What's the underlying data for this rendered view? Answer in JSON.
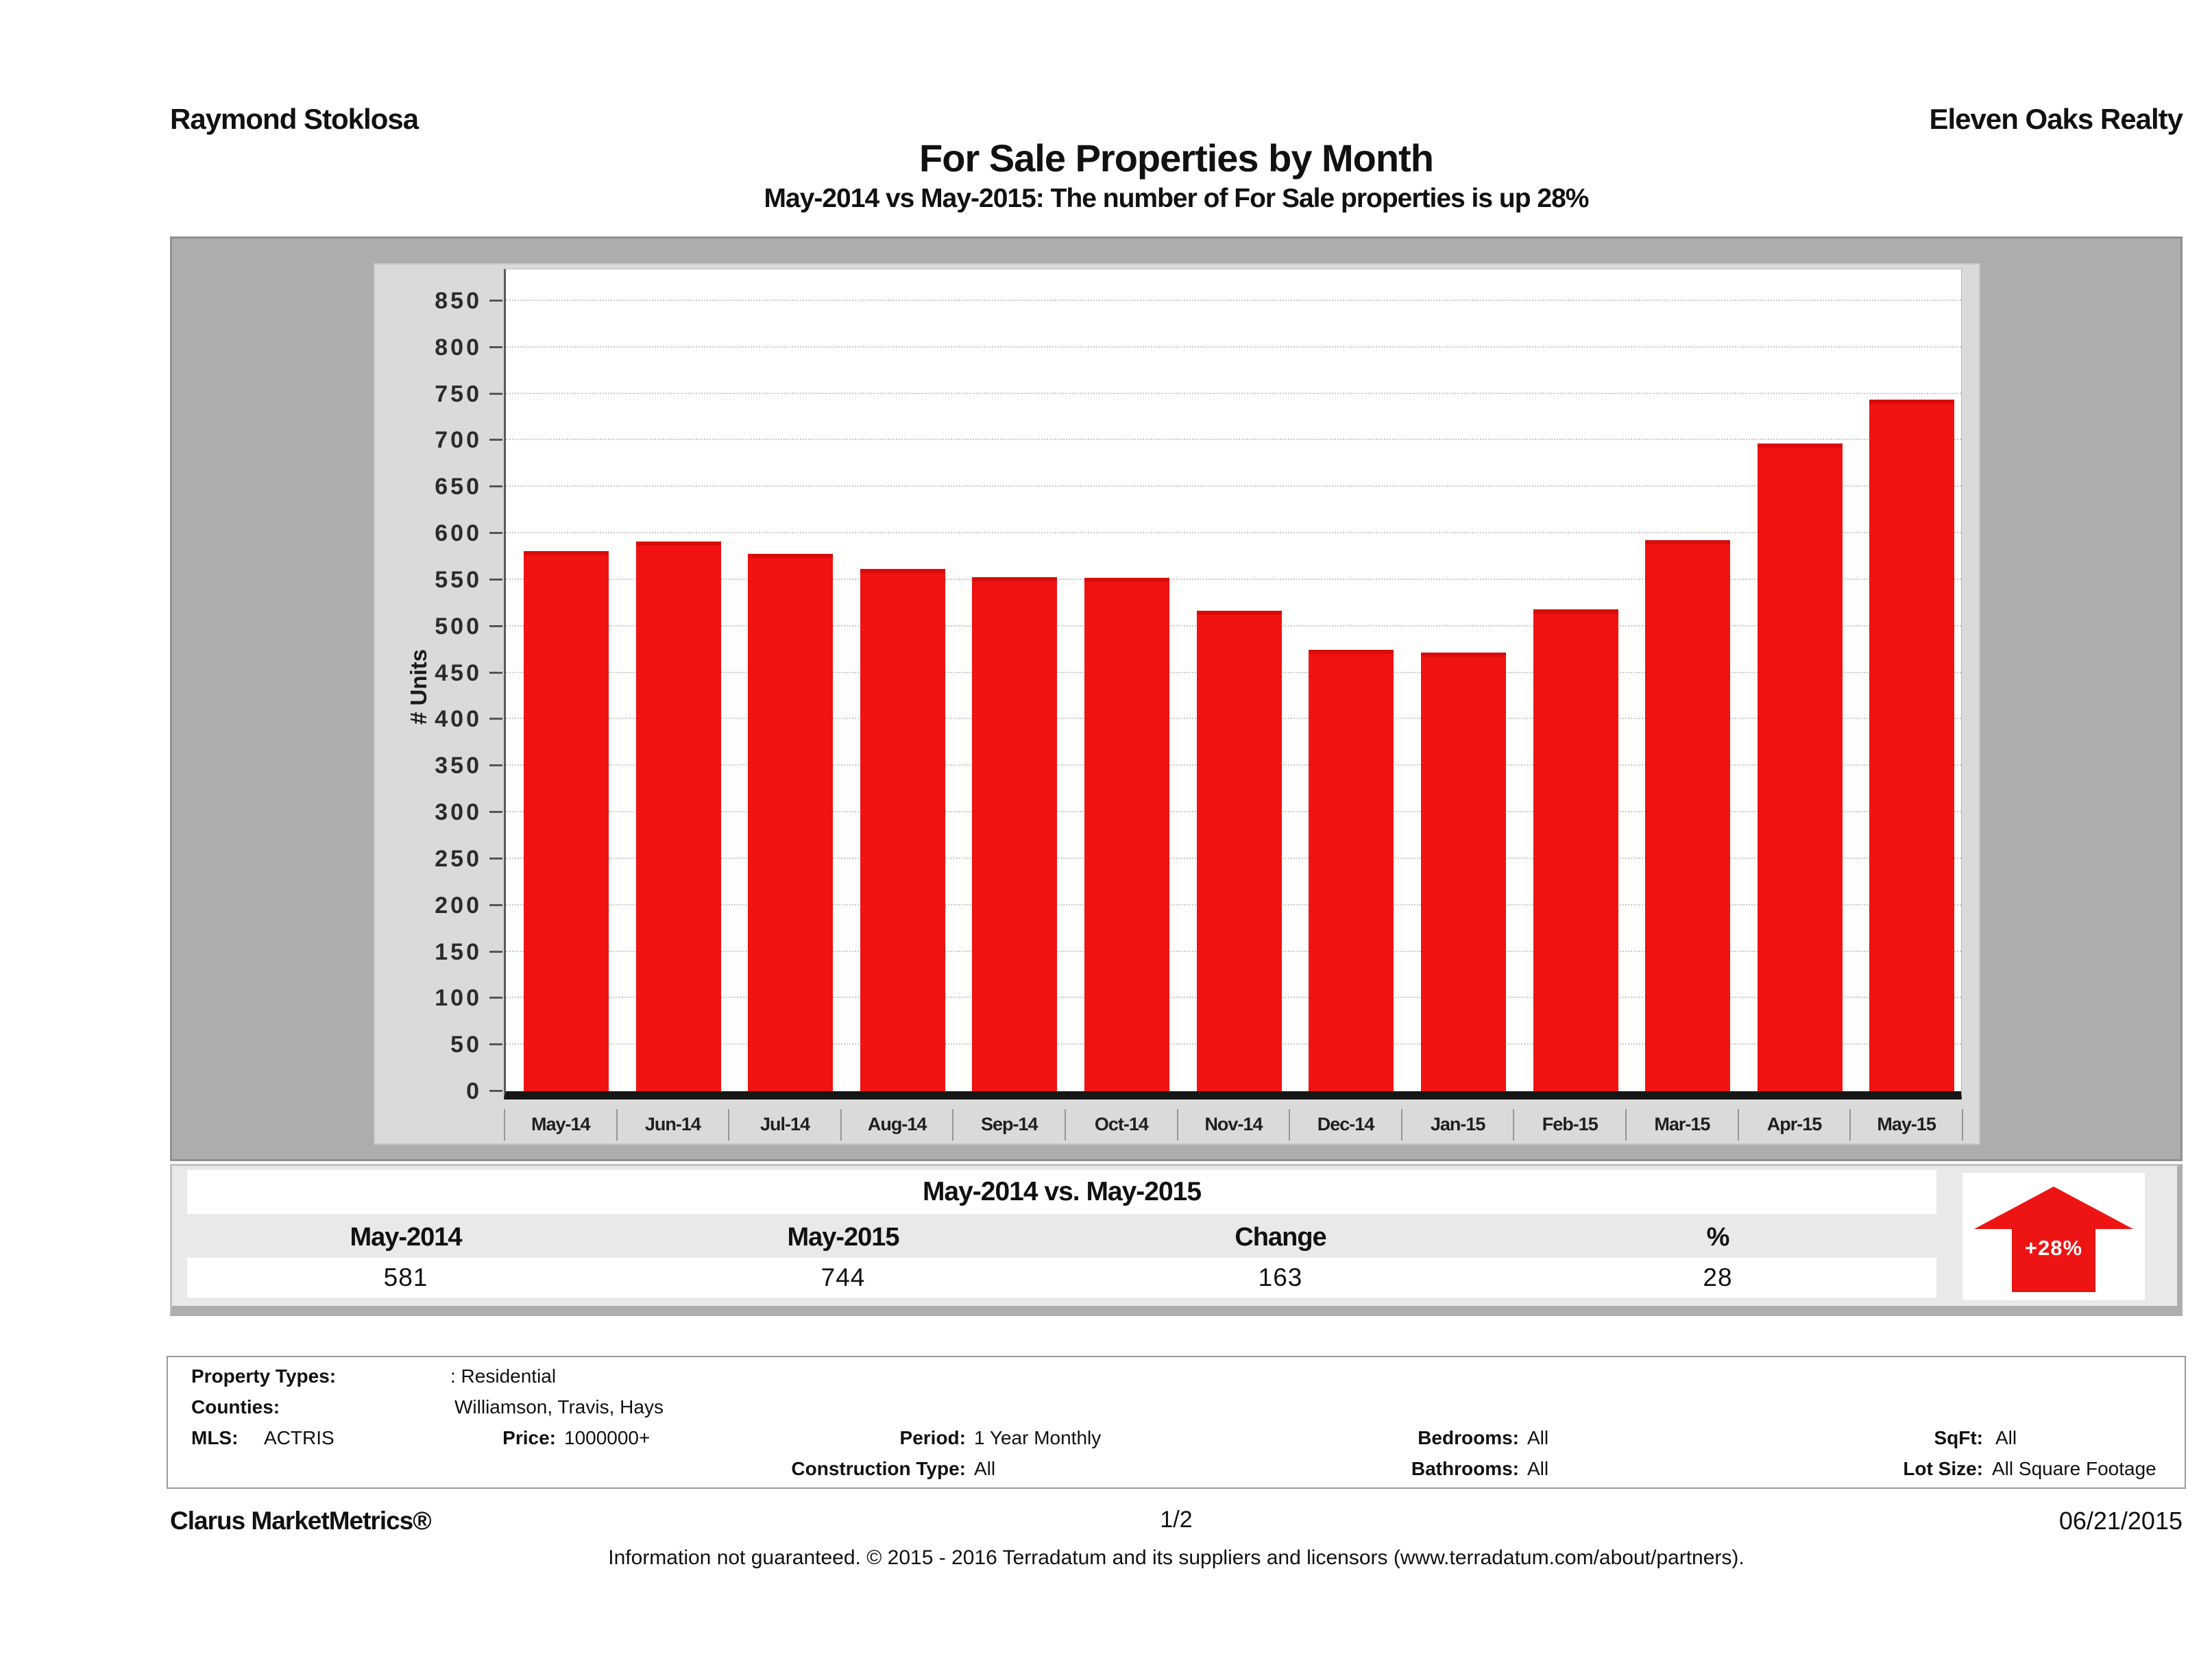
{
  "header": {
    "agent": "Raymond Stoklosa",
    "company": "Eleven Oaks Realty"
  },
  "title": "For Sale Properties by Month",
  "subtitle": "May-2014 vs May-2015: The number of For Sale properties is up 28%",
  "chart_data": {
    "type": "bar",
    "title": "For Sale Properties by Month",
    "categories": [
      "May-14",
      "Jun-14",
      "Jul-14",
      "Aug-14",
      "Sep-14",
      "Oct-14",
      "Nov-14",
      "Dec-14",
      "Jan-15",
      "Feb-15",
      "Mar-15",
      "Apr-15",
      "May-15"
    ],
    "values": [
      581,
      591,
      578,
      562,
      553,
      552,
      517,
      475,
      472,
      518,
      593,
      697,
      744
    ],
    "xlabel": "",
    "ylabel": "# Units",
    "ylim": [
      0,
      850
    ],
    "ytick_step": 50,
    "grid": true,
    "legend_position": "none",
    "bar_color": "#f11212"
  },
  "comparison": {
    "title": "May-2014 vs. May-2015",
    "columns": [
      "May-2014",
      "May-2015",
      "Change",
      "%"
    ],
    "values": [
      "581",
      "744",
      "163",
      "28"
    ],
    "badge": "+28%",
    "badge_color": "#ee1414"
  },
  "filters": {
    "property_types_label": "Property Types:",
    "property_types": ": Residential",
    "counties_label": "Counties:",
    "counties": "Williamson, Travis, Hays",
    "mls_label": "MLS:",
    "mls": "ACTRIS",
    "price_label": "Price:",
    "price": "1000000+",
    "period_label": "Period:",
    "period": "1 Year Monthly",
    "bedrooms_label": "Bedrooms:",
    "bedrooms": "All",
    "sqft_label": "SqFt:",
    "sqft": "All",
    "construction_label": "Construction Type:",
    "construction": "All",
    "bathrooms_label": "Bathrooms:",
    "bathrooms": "All",
    "lot_size_label": "Lot Size:",
    "lot_size": "All Square Footage"
  },
  "footer": {
    "product": "Clarus MarketMetrics®",
    "page": "1/2",
    "date": "06/21/2015",
    "disclaimer": "Information not guaranteed. © 2015 - 2016 Terradatum and its suppliers and licensors (www.terradatum.com/about/partners)."
  }
}
